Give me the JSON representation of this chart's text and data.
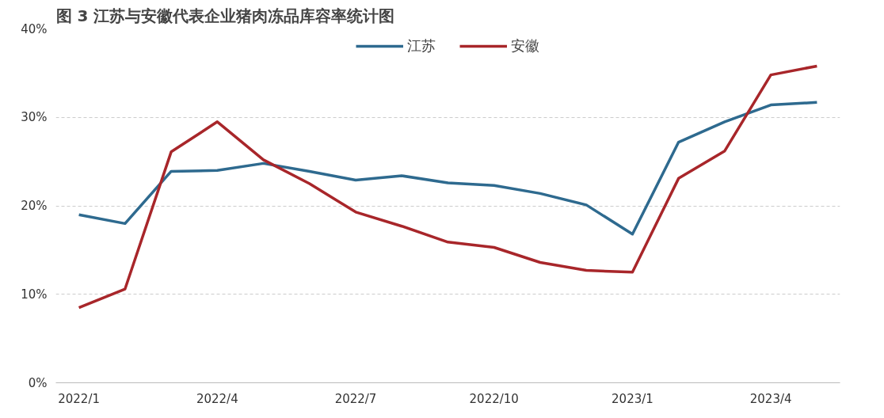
{
  "chart_data": {
    "type": "line",
    "title": "图 3 江苏与安徽代表企业猪肉冻品库容率统计图",
    "categories": [
      "2022/1",
      null,
      null,
      "2022/4",
      null,
      null,
      "2022/7",
      null,
      null,
      "2022/10",
      null,
      null,
      "2023/1",
      null,
      null,
      "2023/4",
      null
    ],
    "series": [
      {
        "name": "江苏",
        "color": "#2e6a8f",
        "values": [
          19.0,
          18.0,
          23.9,
          24.0,
          24.8,
          23.9,
          22.9,
          23.4,
          22.6,
          22.3,
          21.4,
          20.1,
          16.8,
          27.2,
          29.5,
          31.4,
          31.7
        ]
      },
      {
        "name": "安徽",
        "color": "#a8262a",
        "values": [
          8.5,
          10.6,
          26.1,
          29.5,
          25.2,
          22.5,
          19.3,
          17.7,
          15.9,
          15.3,
          13.6,
          12.7,
          12.5,
          23.1,
          26.2,
          34.8,
          35.8
        ]
      }
    ],
    "ylim": [
      0,
      40
    ],
    "yticks": [
      {
        "value": 0,
        "label": "0%"
      },
      {
        "value": 10,
        "label": "10%"
      },
      {
        "value": 20,
        "label": "20%"
      },
      {
        "value": 30,
        "label": "30%"
      },
      {
        "value": 40,
        "label": "40%"
      }
    ],
    "grid": "y",
    "legend": "top",
    "line_style": "solid",
    "marker": "none"
  }
}
